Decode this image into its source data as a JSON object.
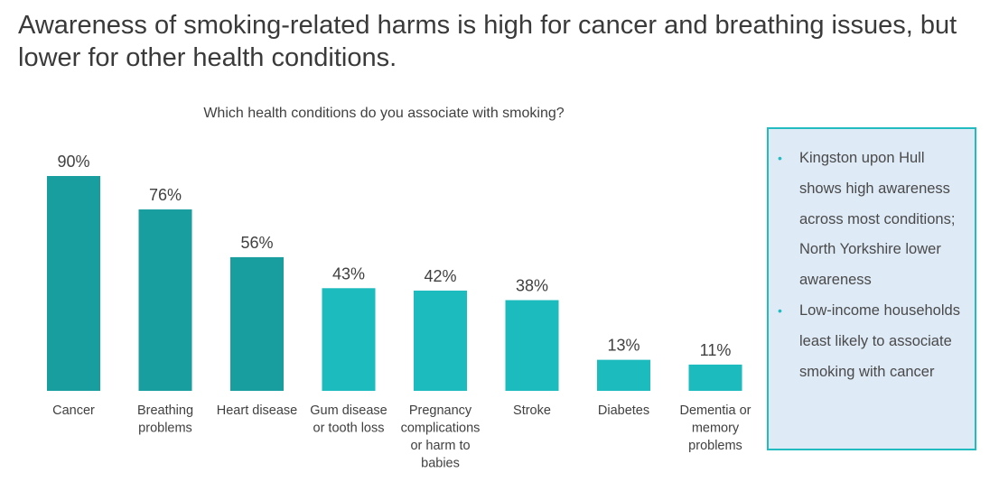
{
  "title": "Awareness of smoking-related harms is high for cancer and breathing issues, but lower for other health conditions.",
  "chart_data": {
    "type": "bar",
    "title": "Which health conditions do you associate with smoking?",
    "categories": [
      [
        "Cancer"
      ],
      [
        "Breathing",
        "problems"
      ],
      [
        "Heart disease"
      ],
      [
        "Gum disease",
        "or tooth loss"
      ],
      [
        "Pregnancy",
        "complications",
        "or harm to",
        "babies"
      ],
      [
        "Stroke"
      ],
      [
        "Diabetes"
      ],
      [
        "Dementia or",
        "memory",
        "problems"
      ]
    ],
    "values": [
      90,
      76,
      56,
      43,
      42,
      38,
      13,
      11
    ],
    "value_labels": [
      "90%",
      "76%",
      "56%",
      "43%",
      "42%",
      "38%",
      "13%",
      "11%"
    ],
    "highlighted": [
      true,
      true,
      true,
      false,
      false,
      false,
      false,
      false
    ],
    "colors": {
      "highlight": "#199e9f",
      "default": "#1cbbbd"
    },
    "ylim": [
      0,
      100
    ],
    "xlabel": "",
    "ylabel": "",
    "grid": false
  },
  "callout": {
    "bullets": [
      "Kingston upon Hull shows high awareness across most conditions; North Yorkshire lower awareness",
      "Low-income households least likely to associate smoking with cancer"
    ],
    "bullet_glyph": "•"
  }
}
